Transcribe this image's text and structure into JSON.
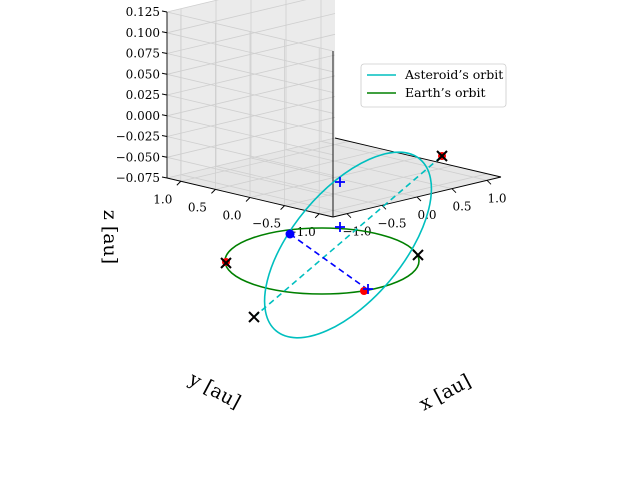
{
  "chart_data": {
    "type": "line",
    "projection": "3d",
    "xlabel": "$x$ [au]",
    "ylabel": "$y$ [au]",
    "zlabel": "$z$ [au]",
    "xlabel_display": "x [au]",
    "ylabel_display": "y [au]",
    "zlabel_display": "z [au]",
    "xlim": [
      -1.2,
      1.2
    ],
    "ylim": [
      -1.2,
      1.2
    ],
    "zlim": [
      -0.075,
      0.125
    ],
    "xticks": [
      -1.0,
      -0.5,
      0.0,
      0.5,
      1.0
    ],
    "yticks": [
      -1.0,
      -0.5,
      0.0,
      0.5,
      1.0
    ],
    "zticks": [
      -0.075,
      -0.05,
      -0.025,
      0.0,
      0.025,
      0.05,
      0.075,
      0.1,
      0.125
    ],
    "xtick_labels": [
      "−1.0",
      "−0.5",
      "0.0",
      "0.5",
      "1.0"
    ],
    "ytick_labels": [
      "−1.0",
      "−0.5",
      "0.0",
      "0.5",
      "1.0"
    ],
    "ztick_labels": [
      "−0.075",
      "−0.050",
      "−0.025",
      "0.000",
      "0.025",
      "0.050",
      "0.075",
      "0.100",
      "0.125"
    ],
    "grid": true,
    "legend_position": "top-right",
    "series": [
      {
        "name": "Asteroid’s orbit",
        "color": "#00bfbf",
        "orbit": {
          "a": 1.0,
          "e": 0.3,
          "inclination_deg": 5.5,
          "node_deg": 200,
          "perihelion_deg": 90
        }
      },
      {
        "name": "Earth’s orbit",
        "color": "#008000",
        "orbit": {
          "a": 1.0,
          "e": 0.0,
          "inclination_deg": 0,
          "node_deg": 0,
          "perihelion_deg": 0
        }
      }
    ],
    "markers": {
      "line_of_nodes_color": "#00bfbf",
      "apsides_line_color": "#0000ff",
      "asteroid_position_color": "#0000ff",
      "earth_points_color": "#ff0000",
      "cross_color": "#000000",
      "plus_color": "#0000ff"
    }
  }
}
